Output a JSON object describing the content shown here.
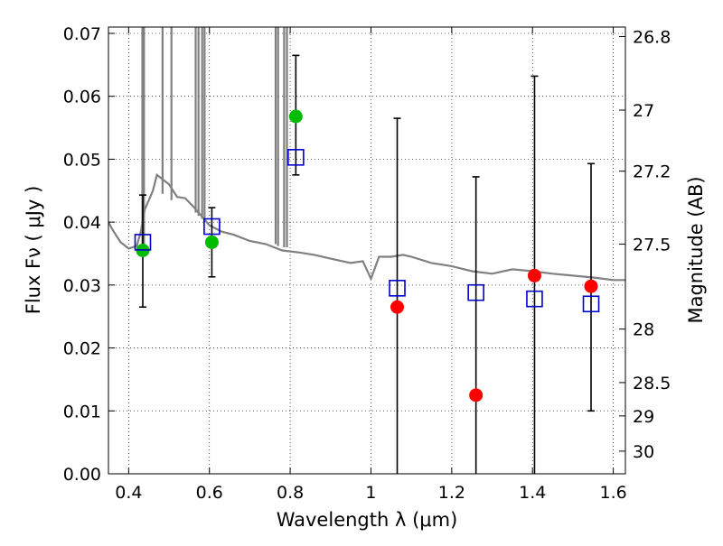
{
  "chart_data": {
    "type": "scatter",
    "xlabel": "Wavelength  λ (μm)",
    "ylabel": "Flux  Fν  ( μJy )",
    "ylabel_right": "Magnitude (AB)",
    "xlim": [
      0.35,
      1.63
    ],
    "ylim": [
      0.0,
      0.071
    ],
    "grid": true,
    "x_ticks": [
      0.4,
      0.6,
      0.8,
      1.0,
      1.2,
      1.4,
      1.6
    ],
    "x_tick_labels": [
      "0.4",
      "0.6",
      "0.8",
      "1",
      "1.2",
      "1.4",
      "1.6"
    ],
    "y_ticks": [
      0.0,
      0.01,
      0.02,
      0.03,
      0.04,
      0.05,
      0.06,
      0.07
    ],
    "y_tick_labels": [
      "0.00",
      "0.01",
      "0.02",
      "0.03",
      "0.04",
      "0.05",
      "0.06",
      "0.07"
    ],
    "right_axis": {
      "tick_labels": [
        "26.8",
        "27",
        "27.2",
        "27.5",
        "28",
        "28.5",
        "29",
        "30"
      ],
      "tick_flux": [
        0.0695,
        0.0578,
        0.0481,
        0.0365,
        0.023,
        0.0145,
        0.0092,
        0.0036
      ]
    },
    "colors": {
      "detection": "#00bb00",
      "upper": "#ff0000",
      "model": "#0000cc",
      "sed": "#808080",
      "errorbar": "#000000"
    },
    "series": [
      {
        "marker": "circle",
        "color": "#00bb00",
        "points": [
          {
            "x": 0.435,
            "y": 0.0355
          },
          {
            "x": 0.606,
            "y": 0.0368
          },
          {
            "x": 0.814,
            "y": 0.0568
          }
        ]
      },
      {
        "marker": "circle",
        "color": "#ff0000",
        "points": [
          {
            "x": 1.065,
            "y": 0.0265
          },
          {
            "x": 1.26,
            "y": 0.0125
          },
          {
            "x": 1.405,
            "y": 0.0315
          },
          {
            "x": 1.545,
            "y": 0.0298
          }
        ]
      },
      {
        "marker": "square",
        "color": "#0000cc",
        "points": [
          {
            "x": 0.435,
            "y": 0.0368
          },
          {
            "x": 0.606,
            "y": 0.0393
          },
          {
            "x": 0.814,
            "y": 0.0503
          },
          {
            "x": 1.065,
            "y": 0.0295
          },
          {
            "x": 1.26,
            "y": 0.0288
          },
          {
            "x": 1.405,
            "y": 0.0278
          },
          {
            "x": 1.545,
            "y": 0.027
          }
        ]
      }
    ],
    "error_bars": [
      {
        "x": 0.435,
        "low": 0.0265,
        "high": 0.0443
      },
      {
        "x": 0.606,
        "low": 0.0313,
        "high": 0.0423
      },
      {
        "x": 0.814,
        "low": 0.0475,
        "high": 0.0665
      },
      {
        "x": 1.065,
        "low": 0.0,
        "high": 0.0565
      },
      {
        "x": 1.26,
        "low": 0.0,
        "high": 0.0472
      },
      {
        "x": 1.405,
        "low": 0.0,
        "high": 0.0632
      },
      {
        "x": 1.545,
        "low": 0.01,
        "high": 0.0493
      }
    ],
    "sed_curve": [
      [
        0.35,
        0.04
      ],
      [
        0.36,
        0.0388
      ],
      [
        0.38,
        0.0368
      ],
      [
        0.4,
        0.0358
      ],
      [
        0.42,
        0.0362
      ],
      [
        0.43,
        0.0385
      ],
      [
        0.44,
        0.042
      ],
      [
        0.46,
        0.045
      ],
      [
        0.47,
        0.0475
      ],
      [
        0.48,
        0.047
      ],
      [
        0.5,
        0.046
      ],
      [
        0.52,
        0.044
      ],
      [
        0.54,
        0.0438
      ],
      [
        0.56,
        0.0425
      ],
      [
        0.58,
        0.041
      ],
      [
        0.6,
        0.0395
      ],
      [
        0.63,
        0.0385
      ],
      [
        0.66,
        0.038
      ],
      [
        0.7,
        0.037
      ],
      [
        0.74,
        0.0365
      ],
      [
        0.78,
        0.0355
      ],
      [
        0.82,
        0.0352
      ],
      [
        0.86,
        0.0348
      ],
      [
        0.9,
        0.0342
      ],
      [
        0.95,
        0.0335
      ],
      [
        0.98,
        0.0338
      ],
      [
        1.0,
        0.031
      ],
      [
        1.02,
        0.0345
      ],
      [
        1.05,
        0.0345
      ],
      [
        1.08,
        0.0348
      ],
      [
        1.1,
        0.0345
      ],
      [
        1.15,
        0.0335
      ],
      [
        1.2,
        0.033
      ],
      [
        1.25,
        0.0322
      ],
      [
        1.3,
        0.0318
      ],
      [
        1.35,
        0.0325
      ],
      [
        1.4,
        0.0322
      ],
      [
        1.45,
        0.0318
      ],
      [
        1.5,
        0.0315
      ],
      [
        1.55,
        0.0312
      ],
      [
        1.6,
        0.0308
      ],
      [
        1.63,
        0.0308
      ]
    ],
    "sed_spikes": [
      {
        "x": 0.434,
        "y": 0.036
      },
      {
        "x": 0.438,
        "y": 0.036
      },
      {
        "x": 0.484,
        "y": 0.0445
      },
      {
        "x": 0.506,
        "y": 0.0435
      },
      {
        "x": 0.566,
        "y": 0.0415
      },
      {
        "x": 0.573,
        "y": 0.041
      },
      {
        "x": 0.582,
        "y": 0.0405
      },
      {
        "x": 0.588,
        "y": 0.04
      },
      {
        "x": 0.764,
        "y": 0.0365
      },
      {
        "x": 0.77,
        "y": 0.0362
      },
      {
        "x": 0.785,
        "y": 0.036
      },
      {
        "x": 0.792,
        "y": 0.036
      }
    ]
  }
}
